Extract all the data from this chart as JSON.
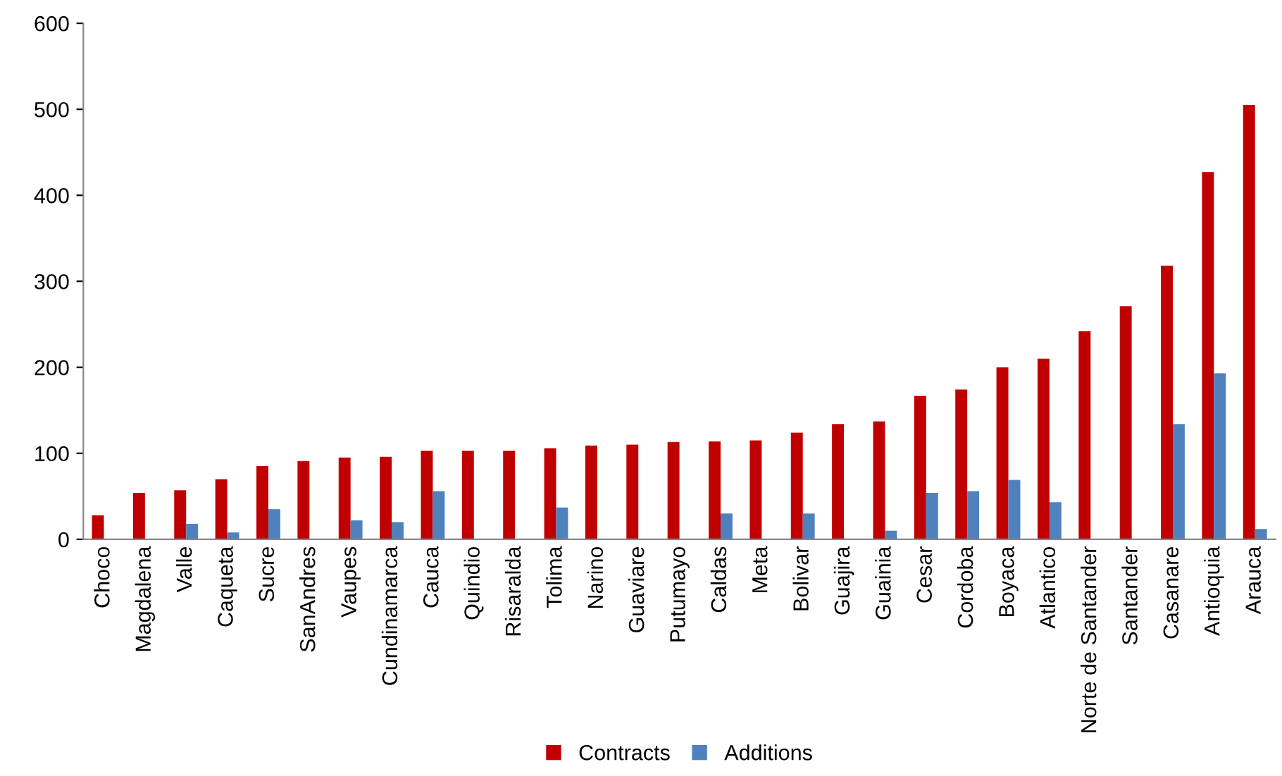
{
  "chart_data": {
    "type": "bar",
    "categories": [
      "Choco",
      "Magdalena",
      "Valle",
      "Caqueta",
      "Sucre",
      "SanAndres",
      "Vaupes",
      "Cundinamarca",
      "Cauca",
      "Quindio",
      "Risaralda",
      "Tolima",
      "Narino",
      "Guaviare",
      "Putumayo",
      "Caldas",
      "Meta",
      "Bolivar",
      "Guajira",
      "Guainia",
      "Cesar",
      "Cordoba",
      "Boyaca",
      "Atlantico",
      "Norte de Santander",
      "Santander",
      "Casanare",
      "Antioquia",
      "Arauca"
    ],
    "series": [
      {
        "name": "Contracts",
        "color": "#c00000",
        "values": [
          28,
          54,
          57,
          70,
          85,
          91,
          95,
          96,
          103,
          103,
          103,
          106,
          109,
          110,
          113,
          114,
          115,
          124,
          134,
          137,
          167,
          174,
          200,
          210,
          242,
          271,
          318,
          427,
          505
        ]
      },
      {
        "name": "Additions",
        "color": "#4f81bd",
        "values": [
          0,
          0,
          18,
          8,
          35,
          0,
          22,
          20,
          56,
          0,
          0,
          37,
          0,
          0,
          0,
          30,
          0,
          30,
          0,
          10,
          54,
          56,
          69,
          43,
          0,
          0,
          134,
          193,
          12
        ]
      }
    ],
    "ylim": [
      0,
      600
    ],
    "yticks": [
      0,
      100,
      200,
      300,
      400,
      500,
      600
    ],
    "grid": false,
    "legend": "bottom"
  }
}
